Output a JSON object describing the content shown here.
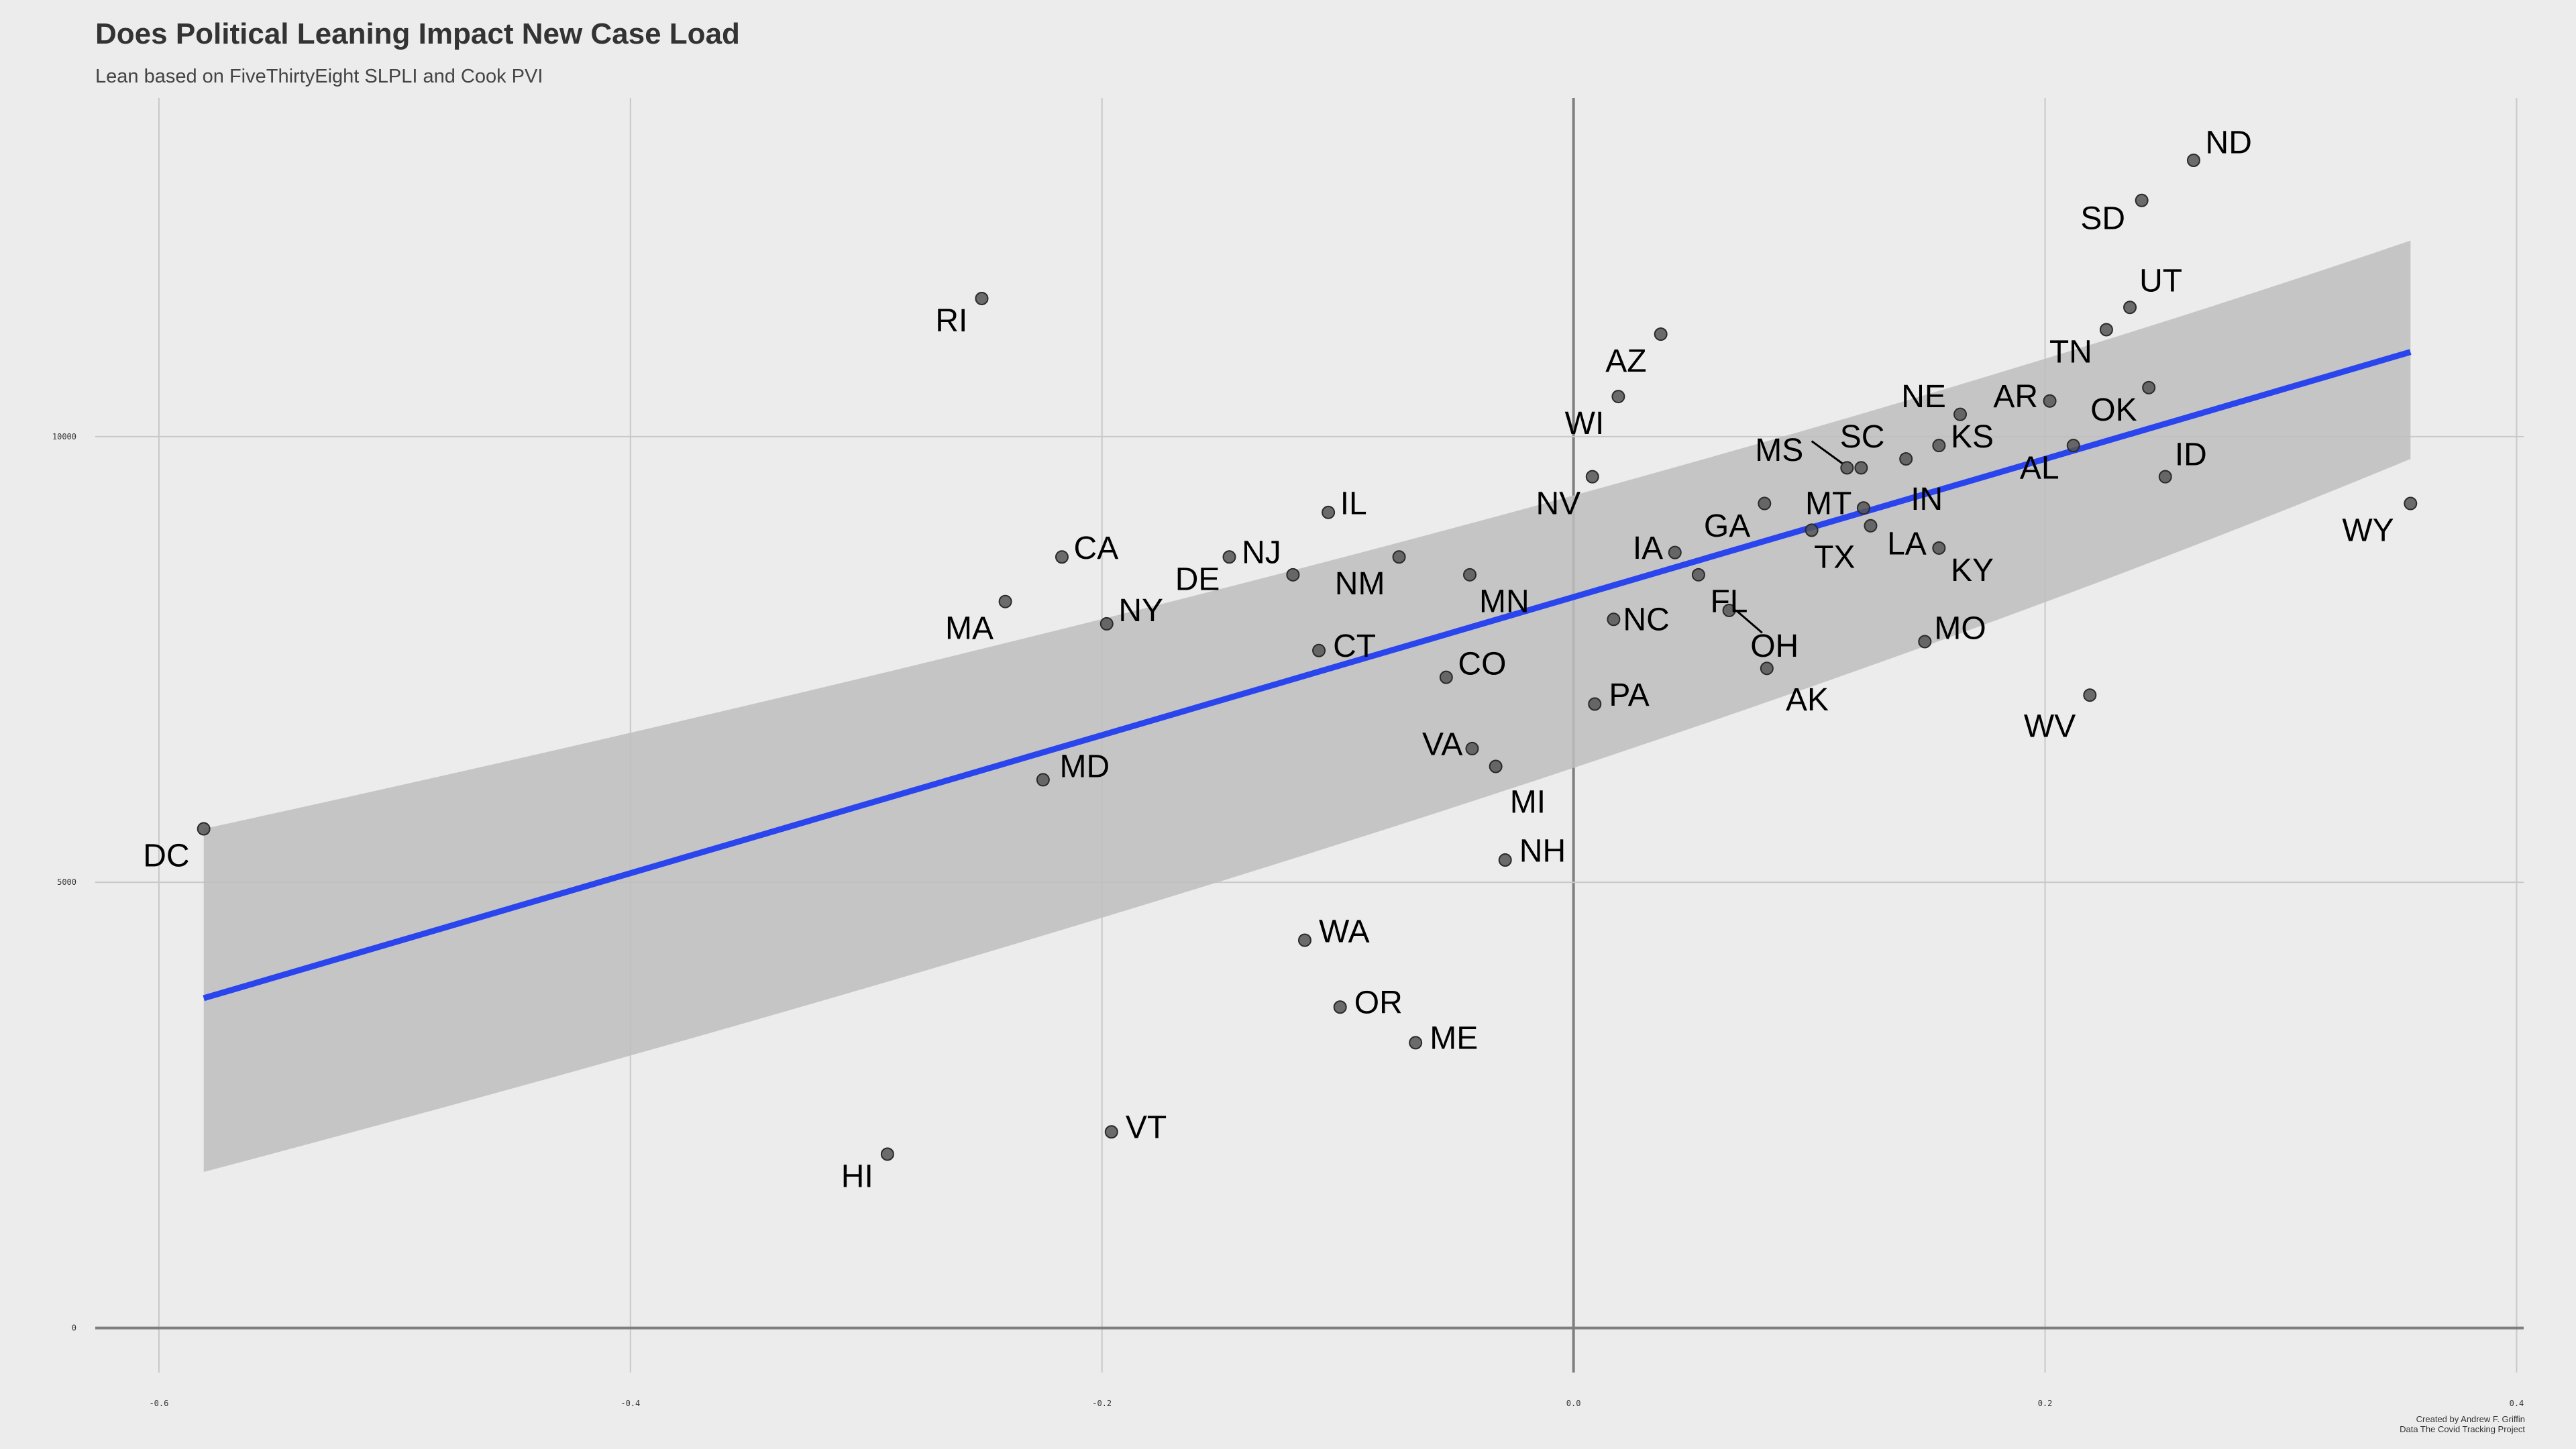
{
  "chart_data": {
    "type": "scatter",
    "title": "Does Political Leaning Impact New Case Load",
    "subtitle": "Lean based on FiveThirtyEight SLPLI and Cook PVI",
    "caption": [
      "Created by Andrew F. Griffin",
      "Data The Covid Tracking Project"
    ],
    "xlabel": "",
    "ylabel": "",
    "xlim": [
      -0.627,
      0.403
    ],
    "ylim": [
      -500,
      13800
    ],
    "x_ticks": [
      -0.6,
      -0.4,
      -0.2,
      0.0,
      0.2,
      0.4
    ],
    "x_tick_labels": [
      "-0.6",
      "-0.4",
      "-0.2",
      "0.0",
      "0.2",
      "0.4"
    ],
    "y_ticks": [
      0,
      5000,
      10000
    ],
    "y_tick_labels": [
      "0",
      "5000",
      "10000"
    ],
    "grid": true,
    "legend": "none",
    "colors": {
      "background": "#ececec",
      "point": "#555555",
      "trend_line": "#2a45ee",
      "confidence_band": "#bebebe",
      "grid": "#c8c8c8",
      "zero_axis": "#7f7f7f"
    },
    "trend": {
      "x": [
        -0.581,
        0.355
      ],
      "y": [
        3700,
        10950
      ],
      "band_lower": [
        1750,
        9750
      ],
      "band_upper": [
        5600,
        12200
      ],
      "band_mid": {
        "x": -0.01,
        "lower": 7700,
        "upper": 8750
      }
    },
    "points": [
      {
        "state": "ND",
        "x": 0.263,
        "y": 13100
      },
      {
        "state": "SD",
        "x": 0.241,
        "y": 12650
      },
      {
        "state": "UT",
        "x": 0.236,
        "y": 11450
      },
      {
        "state": "TN",
        "x": 0.226,
        "y": 11200
      },
      {
        "state": "OK",
        "x": 0.244,
        "y": 10550
      },
      {
        "state": "AR",
        "x": 0.202,
        "y": 10400
      },
      {
        "state": "NE",
        "x": 0.164,
        "y": 10250
      },
      {
        "state": "AL",
        "x": 0.212,
        "y": 9900
      },
      {
        "state": "ID",
        "x": 0.251,
        "y": 9550
      },
      {
        "state": "KS",
        "x": 0.155,
        "y": 9900
      },
      {
        "state": "IN",
        "x": 0.141,
        "y": 9750
      },
      {
        "state": "SC",
        "x": 0.122,
        "y": 9650
      },
      {
        "state": "MS",
        "x": 0.116,
        "y": 9650
      },
      {
        "state": "MT",
        "x": 0.123,
        "y": 9200
      },
      {
        "state": "LA",
        "x": 0.126,
        "y": 9000
      },
      {
        "state": "TX",
        "x": 0.101,
        "y": 8950
      },
      {
        "state": "KY",
        "x": 0.155,
        "y": 8750
      },
      {
        "state": "GA",
        "x": 0.081,
        "y": 9250
      },
      {
        "state": "IA",
        "x": 0.043,
        "y": 8700
      },
      {
        "state": "FL",
        "x": 0.053,
        "y": 8450
      },
      {
        "state": "NC",
        "x": 0.017,
        "y": 7950
      },
      {
        "state": "OH",
        "x": 0.066,
        "y": 8050
      },
      {
        "state": "AK",
        "x": 0.082,
        "y": 7400
      },
      {
        "state": "MO",
        "x": 0.149,
        "y": 7700
      },
      {
        "state": "WV",
        "x": 0.219,
        "y": 7100
      },
      {
        "state": "WY",
        "x": 0.355,
        "y": 9250
      },
      {
        "state": "AZ",
        "x": 0.037,
        "y": 11150
      },
      {
        "state": "WI",
        "x": 0.019,
        "y": 10450
      },
      {
        "state": "NV",
        "x": 0.008,
        "y": 9550
      },
      {
        "state": "PA",
        "x": 0.009,
        "y": 7000
      },
      {
        "state": "MN",
        "x": -0.044,
        "y": 8450
      },
      {
        "state": "NM",
        "x": -0.074,
        "y": 8650
      },
      {
        "state": "CO",
        "x": -0.054,
        "y": 7300
      },
      {
        "state": "VA",
        "x": -0.043,
        "y": 6500
      },
      {
        "state": "MI",
        "x": -0.033,
        "y": 6300
      },
      {
        "state": "NH",
        "x": -0.029,
        "y": 5250
      },
      {
        "state": "IL",
        "x": -0.104,
        "y": 9150
      },
      {
        "state": "NJ",
        "x": -0.119,
        "y": 8450
      },
      {
        "state": "DE",
        "x": -0.146,
        "y": 8650
      },
      {
        "state": "CT",
        "x": -0.108,
        "y": 7600
      },
      {
        "state": "CA",
        "x": -0.217,
        "y": 8650
      },
      {
        "state": "MA",
        "x": -0.241,
        "y": 8150
      },
      {
        "state": "NY",
        "x": -0.198,
        "y": 7900
      },
      {
        "state": "MD",
        "x": -0.225,
        "y": 6150
      },
      {
        "state": "RI",
        "x": -0.251,
        "y": 11550
      },
      {
        "state": "DC",
        "x": -0.581,
        "y": 5600
      },
      {
        "state": "WA",
        "x": -0.114,
        "y": 4350
      },
      {
        "state": "OR",
        "x": -0.099,
        "y": 3600
      },
      {
        "state": "ME",
        "x": -0.067,
        "y": 3200
      },
      {
        "state": "VT",
        "x": -0.196,
        "y": 2200
      },
      {
        "state": "HI",
        "x": -0.291,
        "y": 1950
      }
    ],
    "labels": [
      {
        "state": "ND",
        "x": 0.268,
        "y": 13300,
        "anchor": "start"
      },
      {
        "state": "SD",
        "x": 0.234,
        "y": 12450,
        "anchor": "end"
      },
      {
        "state": "UT",
        "x": 0.24,
        "y": 11750,
        "anchor": "start"
      },
      {
        "state": "TN",
        "x": 0.22,
        "y": 10950,
        "anchor": "end"
      },
      {
        "state": "OK",
        "x": 0.239,
        "y": 10300,
        "anchor": "end"
      },
      {
        "state": "AR",
        "x": 0.197,
        "y": 10450,
        "anchor": "end"
      },
      {
        "state": "NE",
        "x": 0.158,
        "y": 10450,
        "anchor": "end"
      },
      {
        "state": "AL",
        "x": 0.206,
        "y": 9650,
        "anchor": "end"
      },
      {
        "state": "ID",
        "x": 0.255,
        "y": 9800,
        "anchor": "start"
      },
      {
        "state": "KS",
        "x": 0.16,
        "y": 10000,
        "anchor": "start"
      },
      {
        "state": "IN",
        "x": 0.143,
        "y": 9300,
        "anchor": "start"
      },
      {
        "state": "SC",
        "x": 0.113,
        "y": 10000,
        "anchor": "start"
      },
      {
        "state": "MS",
        "x": 0.077,
        "y": 9850,
        "anchor": "start"
      },
      {
        "state": "MT",
        "x": 0.118,
        "y": 9250,
        "anchor": "end"
      },
      {
        "state": "LA",
        "x": 0.133,
        "y": 8800,
        "anchor": "start"
      },
      {
        "state": "TX",
        "x": 0.102,
        "y": 8650,
        "anchor": "start"
      },
      {
        "state": "KY",
        "x": 0.16,
        "y": 8500,
        "anchor": "start"
      },
      {
        "state": "GA",
        "x": 0.075,
        "y": 9000,
        "anchor": "end"
      },
      {
        "state": "IA",
        "x": 0.038,
        "y": 8750,
        "anchor": "end"
      },
      {
        "state": "FL",
        "x": 0.058,
        "y": 8150,
        "anchor": "start"
      },
      {
        "state": "NC",
        "x": 0.021,
        "y": 7950,
        "anchor": "start"
      },
      {
        "state": "OH",
        "x": 0.075,
        "y": 7650,
        "anchor": "start"
      },
      {
        "state": "AK",
        "x": 0.09,
        "y": 7050,
        "anchor": "start"
      },
      {
        "state": "MO",
        "x": 0.153,
        "y": 7850,
        "anchor": "start"
      },
      {
        "state": "WV",
        "x": 0.213,
        "y": 6750,
        "anchor": "end"
      },
      {
        "state": "WY",
        "x": 0.348,
        "y": 8950,
        "anchor": "end"
      },
      {
        "state": "AZ",
        "x": 0.031,
        "y": 10850,
        "anchor": "end"
      },
      {
        "state": "WI",
        "x": 0.013,
        "y": 10150,
        "anchor": "end"
      },
      {
        "state": "NV",
        "x": 0.003,
        "y": 9250,
        "anchor": "end"
      },
      {
        "state": "PA",
        "x": 0.015,
        "y": 7100,
        "anchor": "start"
      },
      {
        "state": "MN",
        "x": -0.04,
        "y": 8150,
        "anchor": "start"
      },
      {
        "state": "NM",
        "x": -0.08,
        "y": 8350,
        "anchor": "end"
      },
      {
        "state": "CO",
        "x": -0.049,
        "y": 7450,
        "anchor": "start"
      },
      {
        "state": "VA",
        "x": -0.047,
        "y": 6550,
        "anchor": "end"
      },
      {
        "state": "MI",
        "x": -0.027,
        "y": 5900,
        "anchor": "start"
      },
      {
        "state": "NH",
        "x": -0.023,
        "y": 5350,
        "anchor": "start"
      },
      {
        "state": "IL",
        "x": -0.099,
        "y": 9250,
        "anchor": "start"
      },
      {
        "state": "NJ",
        "x": -0.124,
        "y": 8700,
        "anchor": "end"
      },
      {
        "state": "DE",
        "x": -0.15,
        "y": 8400,
        "anchor": "end"
      },
      {
        "state": "CT",
        "x": -0.102,
        "y": 7650,
        "anchor": "start"
      },
      {
        "state": "CA",
        "x": -0.212,
        "y": 8750,
        "anchor": "start"
      },
      {
        "state": "MA",
        "x": -0.246,
        "y": 7850,
        "anchor": "end"
      },
      {
        "state": "NY",
        "x": -0.193,
        "y": 8050,
        "anchor": "start"
      },
      {
        "state": "MD",
        "x": -0.218,
        "y": 6300,
        "anchor": "start"
      },
      {
        "state": "RI",
        "x": -0.257,
        "y": 11300,
        "anchor": "end"
      },
      {
        "state": "DC",
        "x": -0.587,
        "y": 5300,
        "anchor": "end"
      },
      {
        "state": "WA",
        "x": -0.108,
        "y": 4450,
        "anchor": "start"
      },
      {
        "state": "OR",
        "x": -0.093,
        "y": 3650,
        "anchor": "start"
      },
      {
        "state": "ME",
        "x": -0.061,
        "y": 3250,
        "anchor": "start"
      },
      {
        "state": "VT",
        "x": -0.19,
        "y": 2250,
        "anchor": "start"
      },
      {
        "state": "HI",
        "x": -0.297,
        "y": 1700,
        "anchor": "end"
      }
    ],
    "leader_lines": [
      {
        "state": "MS",
        "x1": 0.101,
        "y1": 9950,
        "x2": 0.114,
        "y2": 9700
      },
      {
        "state": "OH",
        "x1": 0.069,
        "y1": 8050,
        "x2": 0.08,
        "y2": 7800
      }
    ]
  }
}
